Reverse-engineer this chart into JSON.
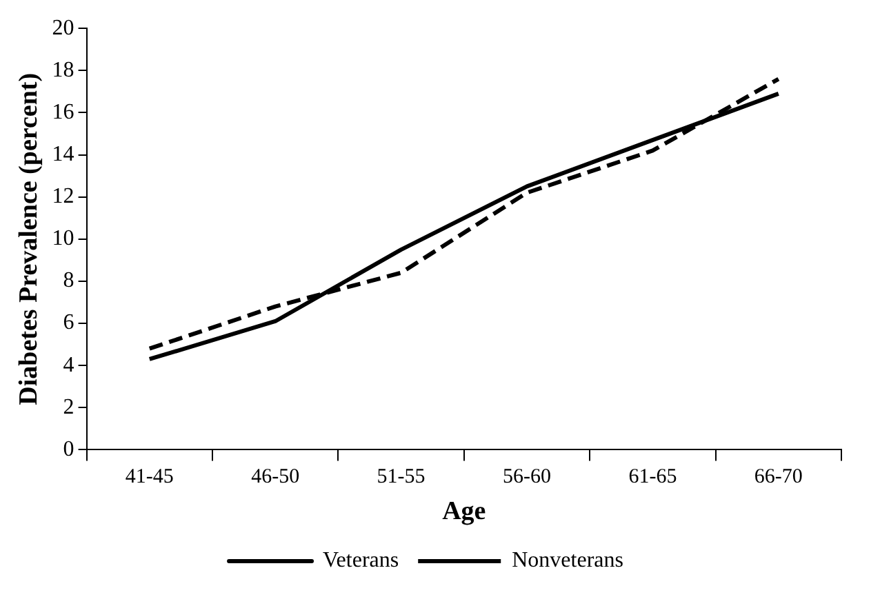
{
  "chart_data": {
    "type": "line",
    "xlabel": "Age",
    "ylabel": "Diabetes Prevalence (percent)",
    "categories": [
      "41-45",
      "46-50",
      "51-55",
      "56-60",
      "61-65",
      "66-70"
    ],
    "series": [
      {
        "name": "Veterans",
        "color": "#000000",
        "line_style": "solid",
        "values": [
          4.3,
          6.1,
          9.5,
          12.5,
          14.7,
          16.9
        ]
      },
      {
        "name": "Nonveterans",
        "color": "#000000",
        "line_style": "dashed",
        "values": [
          4.8,
          6.8,
          8.4,
          12.2,
          14.2,
          17.6
        ]
      }
    ],
    "ylim": [
      0,
      20
    ],
    "yticks": [
      0,
      2,
      4,
      6,
      8,
      10,
      12,
      14,
      16,
      18,
      20
    ],
    "legend": "bottom",
    "marker": "none"
  }
}
